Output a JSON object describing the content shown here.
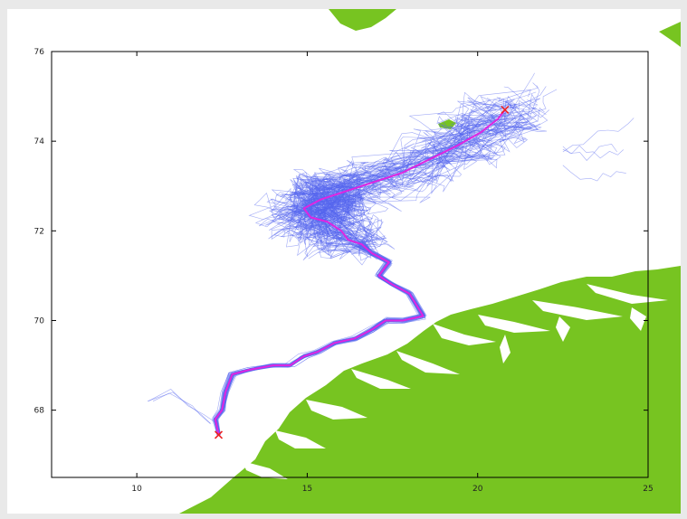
{
  "chart_data": {
    "type": "map-trajectory",
    "title": "",
    "xlabel": "",
    "ylabel": "",
    "xlim": [
      7.5,
      25
    ],
    "ylim": [
      66.5,
      76
    ],
    "x_ticks": [
      10,
      15,
      20,
      25
    ],
    "y_ticks": [
      68,
      70,
      72,
      74,
      76
    ],
    "grid": false,
    "colors": {
      "land": "#77c421",
      "ensemble_tracks": "#5566ee",
      "mean_track": "#e025e0",
      "endpoints": "#ee2222",
      "axes": "#000000"
    },
    "start_point": {
      "lon": 12.4,
      "lat": 67.45
    },
    "end_point": {
      "lon": 20.8,
      "lat": 74.7
    },
    "mean_track": [
      [
        12.4,
        67.45
      ],
      [
        12.3,
        67.8
      ],
      [
        12.5,
        68.0
      ],
      [
        12.6,
        68.4
      ],
      [
        12.8,
        68.8
      ],
      [
        13.3,
        68.9
      ],
      [
        14.0,
        69.0
      ],
      [
        14.5,
        69.0
      ],
      [
        14.9,
        69.2
      ],
      [
        15.3,
        69.3
      ],
      [
        15.8,
        69.5
      ],
      [
        16.4,
        69.6
      ],
      [
        16.9,
        69.8
      ],
      [
        17.3,
        70.0
      ],
      [
        17.8,
        70.0
      ],
      [
        18.4,
        70.1
      ],
      [
        18.0,
        70.6
      ],
      [
        17.5,
        70.8
      ],
      [
        17.1,
        71.0
      ],
      [
        17.4,
        71.3
      ],
      [
        16.9,
        71.5
      ],
      [
        16.6,
        71.7
      ],
      [
        16.2,
        71.8
      ],
      [
        16.0,
        72.0
      ],
      [
        15.6,
        72.2
      ],
      [
        15.1,
        72.3
      ],
      [
        14.9,
        72.5
      ],
      [
        15.4,
        72.7
      ],
      [
        16.2,
        72.9
      ],
      [
        17.0,
        73.1
      ],
      [
        17.8,
        73.3
      ],
      [
        18.6,
        73.6
      ],
      [
        19.4,
        73.9
      ],
      [
        20.1,
        74.2
      ],
      [
        20.6,
        74.5
      ],
      [
        20.8,
        74.7
      ]
    ],
    "ensemble": {
      "count": 60,
      "seed": 7,
      "spread_lon": 1.1,
      "spread_lat": 0.45,
      "cluster_center": [
        14.5,
        72.6
      ],
      "tail_tracks": 4
    }
  }
}
